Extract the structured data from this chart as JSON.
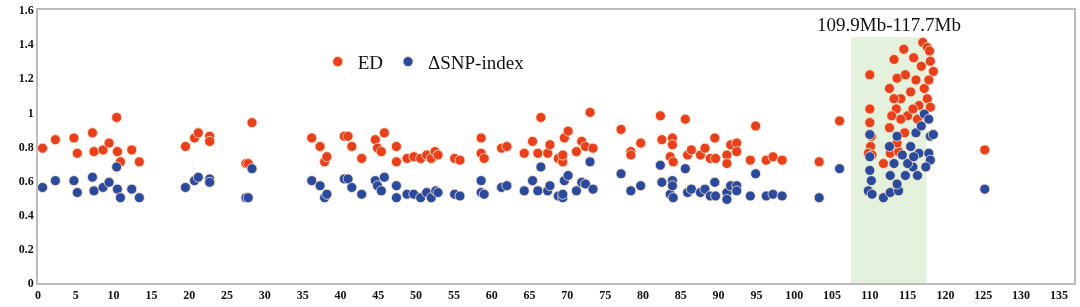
{
  "chart_data": {
    "type": "scatter",
    "xlim": [
      0,
      137
    ],
    "ylim": [
      0,
      1.6
    ],
    "xticks": [
      0,
      5,
      10,
      15,
      20,
      25,
      30,
      35,
      40,
      45,
      50,
      55,
      60,
      65,
      70,
      75,
      80,
      85,
      90,
      95,
      100,
      105,
      110,
      115,
      120,
      125,
      130,
      135
    ],
    "yticks": [
      0,
      0.2,
      0.4,
      0.6,
      0.8,
      1,
      1.2,
      1.4,
      1.6
    ],
    "grid": false,
    "legend": "top",
    "marker": "circle",
    "bands": [
      {
        "axis": "x",
        "from": 107.5,
        "to": 117.5,
        "label": "109.9Mb-117.7Mb",
        "color": "#e3f1dd"
      }
    ],
    "series": [
      {
        "name": "ED",
        "color": "#e8401c",
        "x": [
          0.6,
          2.3,
          4.75,
          5.2,
          7.2,
          7.4,
          8.6,
          9.4,
          10.4,
          10.5,
          10.9,
          12.4,
          13.4,
          19.5,
          20.7,
          21.2,
          22.7,
          22.7,
          27.5,
          27.8,
          28.3,
          36.2,
          37.3,
          37.9,
          38.2,
          40.5,
          41,
          41.5,
          42.8,
          44.6,
          44.9,
          45.4,
          45.8,
          47.4,
          47.4,
          48.8,
          49.7,
          50.6,
          51.4,
          52,
          52.5,
          52.9,
          55.1,
          55.8,
          58.6,
          58.6,
          59,
          61.3,
          62,
          64.3,
          65.4,
          66.1,
          66.5,
          67.4,
          67.7,
          68.8,
          69.4,
          69.4,
          69.6,
          70.1,
          71.2,
          71.9,
          72.4,
          73,
          73.4,
          77.1,
          78.4,
          78.4,
          79.7,
          82.3,
          82.5,
          83.6,
          83.9,
          83.9,
          84,
          85.6,
          85.9,
          86.4,
          87.6,
          88.2,
          88.9,
          89.5,
          89.6,
          91.1,
          91.1,
          91.6,
          92.4,
          92.4,
          94.2,
          94.9,
          96.3,
          97.2,
          98.4,
          103.3,
          106,
          110,
          110,
          110,
          110.2,
          110.1,
          109.8,
          110.3,
          111.8,
          112.7,
          113.8,
          113.6,
          112.6,
          112.6,
          113.2,
          114.5,
          113.6,
          113.5,
          114.1,
          114.7,
          115.4,
          115.8,
          116.5,
          116.3,
          117,
          117.6,
          117.9,
          118,
          118.4,
          117.8,
          117.6,
          118,
          115,
          114.6,
          115.7,
          116.1,
          116.8,
          117.2,
          113.2,
          112.9,
          114.1,
          125.2
        ],
        "values": [
          0.79,
          0.84,
          0.85,
          0.76,
          0.88,
          0.77,
          0.78,
          0.82,
          0.97,
          0.77,
          0.71,
          0.78,
          0.71,
          0.8,
          0.85,
          0.88,
          0.86,
          0.83,
          0.7,
          0.7,
          0.94,
          0.85,
          0.8,
          0.71,
          0.74,
          0.86,
          0.86,
          0.8,
          0.73,
          0.84,
          0.79,
          0.77,
          0.88,
          0.8,
          0.71,
          0.73,
          0.74,
          0.73,
          0.75,
          0.73,
          0.77,
          0.75,
          0.73,
          0.72,
          0.85,
          0.76,
          0.73,
          0.79,
          0.8,
          0.76,
          0.83,
          0.76,
          0.97,
          0.76,
          0.81,
          0.73,
          0.71,
          0.75,
          0.85,
          0.89,
          0.77,
          0.83,
          0.8,
          1.0,
          0.79,
          0.9,
          0.77,
          0.75,
          0.82,
          0.98,
          0.84,
          0.74,
          0.85,
          0.81,
          0.71,
          0.96,
          0.75,
          0.78,
          0.75,
          0.79,
          0.73,
          0.85,
          0.73,
          0.75,
          0.7,
          0.81,
          0.82,
          0.77,
          0.72,
          0.92,
          0.72,
          0.74,
          0.72,
          0.71,
          0.95,
          1.22,
          1.02,
          0.94,
          0.86,
          0.8,
          0.76,
          0.75,
          0.7,
          0.76,
          0.77,
          0.82,
          0.91,
          1.14,
          1.31,
          1.37,
          1.2,
          1.02,
          1.08,
          1.22,
          1.12,
          1.32,
          1.04,
          0.96,
          1.41,
          1.38,
          1.36,
          1.3,
          1.24,
          1.19,
          1.08,
          1.03,
          0.98,
          0.88,
          1.02,
          1.19,
          1.27,
          1.14,
          1.08,
          0.98,
          0.96,
          0.78
        ]
      },
      {
        "name": "ΔSNP-index",
        "color": "#2a4a9e",
        "x": [
          0.6,
          2.3,
          4.75,
          5.2,
          7.2,
          7.4,
          8.6,
          9.4,
          10.4,
          10.5,
          10.9,
          12.4,
          13.4,
          19.5,
          20.7,
          21.2,
          22.7,
          22.7,
          27.5,
          27.8,
          28.3,
          36.2,
          37.3,
          37.9,
          38.2,
          40.5,
          41,
          41.5,
          42.8,
          44.6,
          44.9,
          45.4,
          45.8,
          47.4,
          47.4,
          48.8,
          49.7,
          50.6,
          51.4,
          52,
          52.6,
          52.9,
          55.1,
          55.8,
          58.6,
          58.6,
          59,
          61.3,
          62,
          64.3,
          65.4,
          66.1,
          66.5,
          67.4,
          67.7,
          68.8,
          69.4,
          69.4,
          69.6,
          70.1,
          71.2,
          71.9,
          72.4,
          73,
          73.4,
          77.1,
          78.4,
          79.7,
          82.3,
          82.5,
          83.6,
          83.9,
          83.9,
          84,
          85.6,
          85.9,
          86.4,
          87.6,
          88.2,
          88.9,
          89.5,
          89.6,
          91.1,
          91.1,
          91.6,
          92.4,
          92.4,
          94.2,
          94.9,
          96.3,
          97.2,
          98.4,
          103.3,
          106,
          110,
          110,
          110,
          110.2,
          109.8,
          110.3,
          111.8,
          112.7,
          113.8,
          113.6,
          112.7,
          112.6,
          113.2,
          113.6,
          114.3,
          114.7,
          115.4,
          115.7,
          116.3,
          116.1,
          116.5,
          116.8,
          117.2,
          117.8,
          118,
          118.4,
          117.8,
          118,
          117.4,
          115,
          115.8,
          125.2
        ],
        "values": [
          0.56,
          0.6,
          0.6,
          0.53,
          0.62,
          0.54,
          0.56,
          0.59,
          0.68,
          0.55,
          0.5,
          0.55,
          0.5,
          0.56,
          0.6,
          0.62,
          0.61,
          0.59,
          0.5,
          0.5,
          0.67,
          0.6,
          0.57,
          0.5,
          0.52,
          0.61,
          0.61,
          0.56,
          0.52,
          0.6,
          0.57,
          0.54,
          0.62,
          0.57,
          0.5,
          0.52,
          0.52,
          0.5,
          0.53,
          0.5,
          0.54,
          0.53,
          0.52,
          0.51,
          0.6,
          0.53,
          0.52,
          0.56,
          0.57,
          0.54,
          0.6,
          0.54,
          0.68,
          0.54,
          0.57,
          0.51,
          0.5,
          0.52,
          0.6,
          0.63,
          0.54,
          0.59,
          0.58,
          0.71,
          0.55,
          0.64,
          0.54,
          0.57,
          0.69,
          0.59,
          0.52,
          0.6,
          0.57,
          0.5,
          0.67,
          0.53,
          0.55,
          0.53,
          0.55,
          0.51,
          0.59,
          0.51,
          0.53,
          0.49,
          0.57,
          0.57,
          0.54,
          0.51,
          0.64,
          0.51,
          0.52,
          0.51,
          0.5,
          0.67,
          0.87,
          0.74,
          0.66,
          0.6,
          0.54,
          0.52,
          0.5,
          0.53,
          0.54,
          0.58,
          0.63,
          0.8,
          0.7,
          0.86,
          0.75,
          0.63,
          0.8,
          0.68,
          0.63,
          0.88,
          0.76,
          0.92,
          0.99,
          0.96,
          0.86,
          0.87,
          0.76,
          0.72,
          0.68,
          0.7,
          0.74,
          0.55
        ]
      }
    ]
  }
}
